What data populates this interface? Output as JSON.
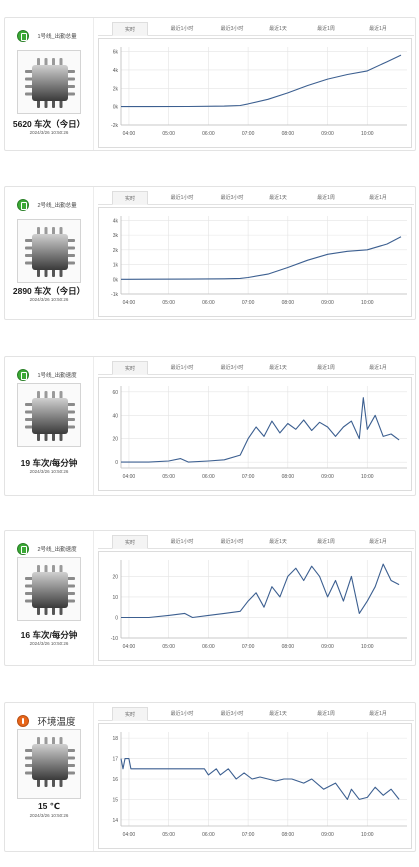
{
  "tabs": [
    "实时",
    "最近1小时",
    "最近3小时",
    "最近1天",
    "最近1周",
    "最近1月"
  ],
  "colors": {
    "line": "#3c5f90",
    "grid": "#e4e4e4",
    "green_icon": "#3aa935",
    "orange_icon": "#e8661b"
  },
  "panels": [
    {
      "icon": "green-status-icon",
      "title": "1号线_出勤总量",
      "value": "5620 车次（今日）",
      "timestamp": "2024/3/26 10:50:26"
    },
    {
      "icon": "green-status-icon",
      "title": "2号线_出勤总量",
      "value": "2890 车次（今日）",
      "timestamp": "2024/3/26 10:50:26"
    },
    {
      "icon": "green-status-icon",
      "title": "1号线_出勤速度",
      "value": "19 车次/每分钟",
      "timestamp": "2024/3/26 10:50:26"
    },
    {
      "icon": "green-status-icon",
      "title": "2号线_出勤速度",
      "value": "16 车次/每分钟",
      "timestamp": "2024/3/26 10:50:26"
    },
    {
      "icon": "orange-thermometer-icon",
      "title": "环境温度",
      "value": "15 ℃",
      "timestamp": "2024/3/26 10:50:26"
    }
  ],
  "chart_data": [
    {
      "type": "line",
      "x_ticks": [
        "04:00",
        "05:00",
        "06:00",
        "07:00",
        "08:00",
        "09:00",
        "10:00"
      ],
      "y_ticks": [
        "-2k",
        "0k",
        "2k",
        "4k",
        "6k"
      ],
      "ylim": [
        -2000,
        6500
      ],
      "grid": true,
      "x_hours": [
        3.8,
        4.5,
        5.5,
        6.4,
        6.8,
        7.0,
        7.5,
        8.0,
        8.5,
        9.0,
        9.5,
        10.0,
        10.5,
        10.85
      ],
      "values": [
        0,
        5,
        20,
        60,
        120,
        300,
        800,
        1500,
        2300,
        3000,
        3500,
        3900,
        4900,
        5620
      ]
    },
    {
      "type": "line",
      "x_ticks": [
        "04:00",
        "05:00",
        "06:00",
        "07:00",
        "08:00",
        "09:00",
        "10:00"
      ],
      "y_ticks": [
        "-1k",
        "0k",
        "1k",
        "2k",
        "3k",
        "4k"
      ],
      "ylim": [
        -1000,
        4300
      ],
      "grid": true,
      "x_hours": [
        3.8,
        4.5,
        5.5,
        6.4,
        6.8,
        7.0,
        7.5,
        8.0,
        8.5,
        9.0,
        9.5,
        10.0,
        10.5,
        10.85
      ],
      "values": [
        0,
        3,
        10,
        30,
        60,
        120,
        350,
        800,
        1300,
        1700,
        1900,
        2000,
        2400,
        2890
      ]
    },
    {
      "type": "line",
      "x_ticks": [
        "04:00",
        "05:00",
        "06:00",
        "07:00",
        "08:00",
        "09:00",
        "10:00"
      ],
      "y_ticks": [
        "0",
        "20",
        "40",
        "60"
      ],
      "ylim": [
        -5,
        65
      ],
      "grid": true,
      "x_hours": [
        3.8,
        4.5,
        5.0,
        5.3,
        5.5,
        6.0,
        6.4,
        6.8,
        7.0,
        7.2,
        7.4,
        7.6,
        7.8,
        8.0,
        8.2,
        8.4,
        8.6,
        8.8,
        9.0,
        9.2,
        9.4,
        9.6,
        9.8,
        9.9,
        10.0,
        10.2,
        10.4,
        10.6,
        10.8
      ],
      "values": [
        0,
        0,
        1,
        3,
        0,
        1,
        2,
        6,
        20,
        30,
        22,
        35,
        25,
        33,
        28,
        36,
        27,
        34,
        30,
        22,
        30,
        35,
        20,
        55,
        28,
        40,
        22,
        24,
        19
      ]
    },
    {
      "type": "line",
      "x_ticks": [
        "04:00",
        "05:00",
        "06:00",
        "07:00",
        "08:00",
        "09:00",
        "10:00"
      ],
      "y_ticks": [
        "-10",
        "0",
        "10",
        "20"
      ],
      "ylim": [
        -10,
        28
      ],
      "grid": true,
      "x_hours": [
        3.8,
        4.5,
        5.0,
        5.4,
        5.6,
        6.0,
        6.4,
        6.8,
        7.0,
        7.2,
        7.4,
        7.6,
        7.8,
        8.0,
        8.2,
        8.4,
        8.6,
        8.8,
        9.0,
        9.2,
        9.4,
        9.6,
        9.8,
        10.0,
        10.2,
        10.4,
        10.6,
        10.8
      ],
      "values": [
        0,
        0,
        1,
        2,
        0,
        1,
        2,
        3,
        8,
        12,
        5,
        15,
        10,
        20,
        24,
        18,
        25,
        20,
        10,
        18,
        8,
        20,
        2,
        8,
        15,
        26,
        18,
        16
      ]
    },
    {
      "type": "line",
      "x_ticks": [
        "04:00",
        "05:00",
        "06:00",
        "07:00",
        "08:00",
        "09:00",
        "10:00"
      ],
      "y_ticks": [
        "14",
        "15",
        "16",
        "17",
        "18"
      ],
      "ylim": [
        13.7,
        18.3
      ],
      "grid": true,
      "x_hours": [
        3.8,
        3.85,
        3.9,
        4.0,
        4.05,
        4.1,
        5.9,
        6.0,
        6.2,
        6.3,
        6.5,
        6.7,
        6.9,
        7.1,
        7.3,
        7.5,
        7.7,
        7.9,
        8.1,
        8.4,
        8.6,
        8.9,
        9.2,
        9.5,
        9.6,
        9.8,
        10.0,
        10.2,
        10.4,
        10.6,
        10.8
      ],
      "values": [
        17,
        16.5,
        17,
        17,
        16.5,
        16.5,
        16.5,
        16.2,
        16.5,
        16.2,
        16.5,
        16,
        16.3,
        16,
        16.1,
        16,
        15.9,
        16,
        16,
        15.8,
        16,
        15.5,
        15.8,
        15,
        15.5,
        15,
        15.1,
        15.6,
        15.2,
        15.5,
        15
      ]
    }
  ]
}
